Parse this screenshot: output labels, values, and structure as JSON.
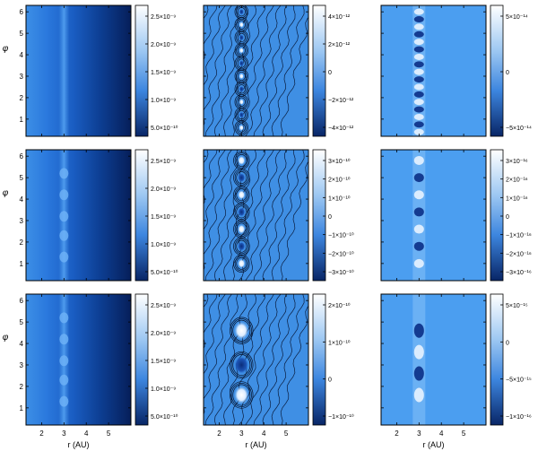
{
  "figure": {
    "y_axis_label": "φ",
    "x_axis_label": "r (AU)",
    "x_ticks": [
      "2",
      "3",
      "4",
      "5"
    ],
    "y_ticks": [
      "1",
      "2",
      "3",
      "4",
      "5",
      "6"
    ]
  },
  "chart_data": [
    {
      "type": "heatmap",
      "row": 0,
      "col": 0,
      "panel": "left",
      "xlabel": "",
      "ylabel": "φ",
      "xlim": [
        1.3,
        6.0
      ],
      "ylim": [
        0.2,
        6.3
      ],
      "colorscale": "blue",
      "colorbar_ticks": [
        "2.5×10⁻⁹",
        "2.0×10⁻⁹",
        "1.5×10⁻⁹",
        "1.0×10⁻⁹",
        "5.0×10⁻¹⁰"
      ]
    },
    {
      "type": "heatmap",
      "row": 0,
      "col": 1,
      "panel": "middle",
      "xlabel": "",
      "ylabel": "",
      "xlim": [
        1.3,
        6.0
      ],
      "ylim": [
        0.2,
        6.3
      ],
      "contours": true,
      "colorscale": "blue",
      "colorbar_ticks": [
        "4×10⁻¹²",
        "2×10⁻¹²",
        "0",
        "−2×10⁻¹²",
        "−4×10⁻¹²"
      ]
    },
    {
      "type": "heatmap",
      "row": 0,
      "col": 2,
      "panel": "right",
      "xlabel": "",
      "ylabel": "",
      "xlim": [
        1.3,
        6.0
      ],
      "ylim": [
        0.2,
        6.3
      ],
      "colorscale": "blue",
      "colorbar_ticks": [
        "5×10⁻¹⁴",
        "0",
        "−5×10⁻¹⁴"
      ]
    },
    {
      "type": "heatmap",
      "row": 1,
      "col": 0,
      "panel": "left",
      "xlabel": "",
      "ylabel": "φ",
      "xlim": [
        1.3,
        6.0
      ],
      "ylim": [
        0.2,
        6.3
      ],
      "colorscale": "blue",
      "colorbar_ticks": [
        "2.5×10⁻⁹",
        "2.0×10⁻⁹",
        "1.5×10⁻⁹",
        "1.0×10⁻⁹",
        "5.0×10⁻¹⁰"
      ]
    },
    {
      "type": "heatmap",
      "row": 1,
      "col": 1,
      "panel": "middle",
      "xlabel": "",
      "ylabel": "",
      "xlim": [
        1.3,
        6.0
      ],
      "ylim": [
        0.2,
        6.3
      ],
      "contours": true,
      "colorscale": "blue",
      "colorbar_ticks": [
        "3×10⁻¹⁰",
        "2×10⁻¹⁰",
        "1×10⁻¹⁰",
        "0",
        "−1×10⁻¹⁰",
        "−2×10⁻¹⁰",
        "−3×10⁻¹⁰"
      ]
    },
    {
      "type": "heatmap",
      "row": 1,
      "col": 2,
      "panel": "right",
      "xlabel": "",
      "ylabel": "",
      "xlim": [
        1.3,
        6.0
      ],
      "ylim": [
        0.2,
        6.3
      ],
      "colorscale": "blue",
      "colorbar_ticks": [
        "3×10⁻¹⁶",
        "2×10⁻¹⁶",
        "1×10⁻¹⁶",
        "0",
        "−1×10⁻¹⁶",
        "−2×10⁻¹⁶",
        "−3×10⁻¹⁶"
      ]
    },
    {
      "type": "heatmap",
      "row": 2,
      "col": 0,
      "panel": "left",
      "xlabel": "r (AU)",
      "ylabel": "φ",
      "xlim": [
        1.3,
        6.0
      ],
      "ylim": [
        0.2,
        6.3
      ],
      "colorscale": "blue",
      "colorbar_ticks": [
        "2.5×10⁻⁹",
        "2.0×10⁻⁹",
        "1.5×10⁻⁹",
        "1.0×10⁻⁹",
        "5.0×10⁻¹⁰"
      ]
    },
    {
      "type": "heatmap",
      "row": 2,
      "col": 1,
      "panel": "middle",
      "xlabel": "r (AU)",
      "ylabel": "",
      "xlim": [
        1.3,
        6.0
      ],
      "ylim": [
        0.2,
        6.3
      ],
      "contours": true,
      "colorscale": "blue",
      "colorbar_ticks": [
        "2×10⁻¹⁰",
        "1×10⁻¹⁰",
        "0",
        "−1×10⁻¹⁰"
      ]
    },
    {
      "type": "heatmap",
      "row": 2,
      "col": 2,
      "panel": "right",
      "xlabel": "r (AU)",
      "ylabel": "",
      "xlim": [
        1.3,
        6.0
      ],
      "ylim": [
        0.2,
        6.3
      ],
      "colorscale": "blue",
      "colorbar_ticks": [
        "5×10⁻¹⁵",
        "0",
        "−5×10⁻¹⁵",
        "−1×10⁻¹⁶"
      ]
    }
  ]
}
